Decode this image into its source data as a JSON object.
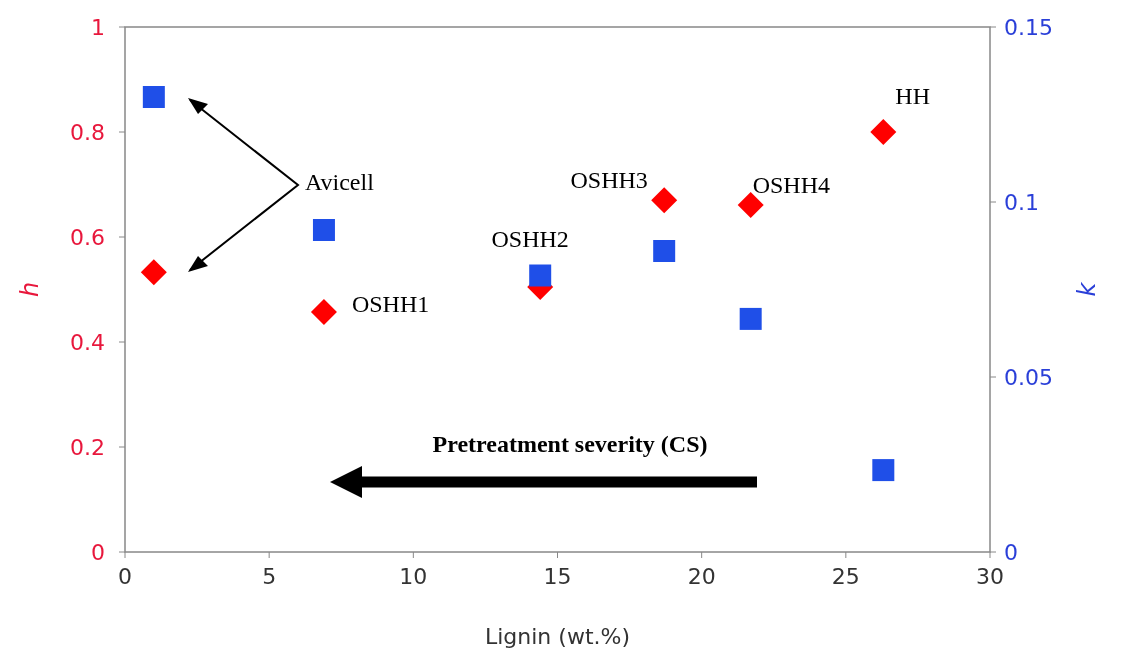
{
  "chart_data": {
    "type": "scatter",
    "xlabel": "Lignin (wt.%)",
    "ylabel": "h",
    "y2label": "k",
    "xlim": [
      0,
      30
    ],
    "xticks": [
      0,
      5,
      10,
      15,
      20,
      25,
      30
    ],
    "ylim": [
      0,
      1
    ],
    "yticks": [
      0,
      0.2,
      0.4,
      0.6,
      0.8,
      1
    ],
    "y2lim": [
      0,
      0.15
    ],
    "y2ticks": [
      0,
      0.05,
      0.1,
      0.15
    ],
    "grid": false,
    "series": [
      {
        "color": "#ff0000",
        "marker": "diamond",
        "x": [
          6.9,
          14.4,
          18.7,
          21.7,
          26.3
        ],
        "values": [
          0.457,
          0.505,
          0.67,
          0.661,
          0.8
        ]
      },
      {
        "color": "#ff0000",
        "marker": "diamond",
        "x": [
          1
        ],
        "values": [
          0.533
        ]
      },
      {
        "color": "#1f4fe8",
        "marker": "square",
        "axis": "y2",
        "x": [
          6.9,
          14.4,
          18.7,
          21.7,
          26.3
        ],
        "values": [
          0.092,
          0.079,
          0.086,
          0.0666,
          0.0234
        ]
      },
      {
        "color": "#1f4fe8",
        "marker": "square",
        "axis": "y2",
        "x": [
          1
        ],
        "values": [
          0.13
        ]
      }
    ],
    "annotations": [
      {
        "text": "OSHH1",
        "x": 6.9,
        "y": 0.457
      },
      {
        "text": "OSHH2",
        "x": 14.4,
        "y": 0.505
      },
      {
        "text": "OSHH3",
        "x": 18.7,
        "y": 0.67
      },
      {
        "text": "OSHH4",
        "x": 21.7,
        "y": 0.661
      },
      {
        "text": "HH",
        "x": 26.3,
        "y": 0.8
      },
      "Avicell",
      "Pretreatment severity (CS)"
    ]
  }
}
